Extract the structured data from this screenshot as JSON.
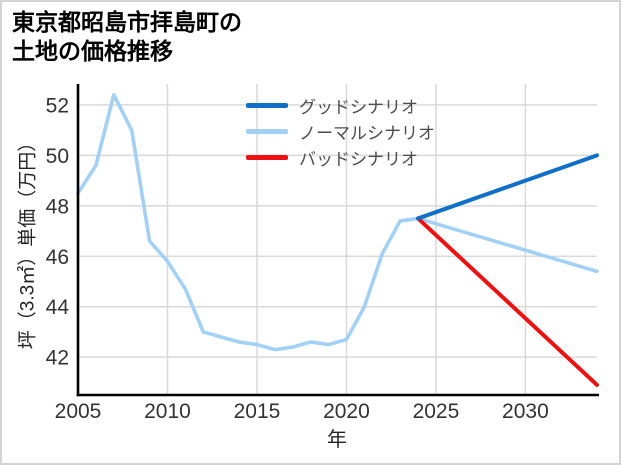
{
  "page": {
    "background": "#ffffff",
    "border_color": "#d4d4d4",
    "grid_color": "#d9d9d9",
    "axis_color": "#000000",
    "tick_text_color": "#333333"
  },
  "chart_data": {
    "type": "line",
    "title": "東京都昭島市拝島町の\n土地の価格推移",
    "xlabel": "年",
    "ylabel": "坪（3.3㎡）単価（万円）",
    "xlim": [
      2005,
      2034
    ],
    "ylim": [
      40.5,
      52.75
    ],
    "xticks": [
      2005,
      2010,
      2015,
      2020,
      2025,
      2030
    ],
    "yticks": [
      42,
      44,
      46,
      48,
      50,
      52
    ],
    "grid": true,
    "legend_position": "upper center-left, no frame",
    "series": [
      {
        "name": "グッドシナリオ",
        "color": "#1070c8",
        "x": [
          2024,
          2034
        ],
        "values": [
          47.5,
          50.0
        ]
      },
      {
        "name": "ノーマルシナリオ",
        "color": "#a3d1f5",
        "x": [
          2005,
          2006,
          2007,
          2008,
          2009,
          2010,
          2011,
          2012,
          2013,
          2014,
          2015,
          2016,
          2017,
          2018,
          2019,
          2020,
          2021,
          2022,
          2023,
          2024,
          2034
        ],
        "values": [
          48.5,
          49.6,
          52.4,
          51.0,
          46.6,
          45.8,
          44.7,
          43.0,
          42.8,
          42.6,
          42.5,
          42.3,
          42.4,
          42.6,
          42.5,
          42.7,
          44.0,
          46.1,
          47.4,
          47.5,
          45.4
        ]
      },
      {
        "name": "バッドシナリオ",
        "color": "#ee1111",
        "x": [
          2024,
          2034
        ],
        "values": [
          47.5,
          40.9
        ]
      }
    ]
  }
}
